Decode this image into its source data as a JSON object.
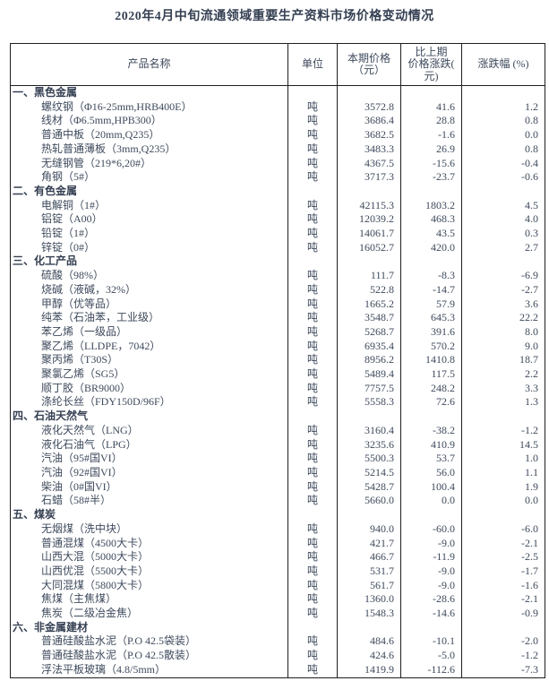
{
  "title": "2020年4月中旬流通领域重要生产资料市场价格变动情况",
  "colors": {
    "text": "#3e4a5c",
    "border": "#1f1f1f",
    "background": "#ffffff"
  },
  "table": {
    "headers": {
      "product": "产品名称",
      "unit": "单位",
      "price": "本期价格\n（元）",
      "change": "比上期\n价格涨跌(\n元)",
      "pct": "涨跌幅 (%)"
    },
    "sections": [
      {
        "title": "一、黑色金属",
        "rows": [
          {
            "name": "螺纹钢（Φ16-25mm,HRB400E）",
            "unit": "吨",
            "price": "3572.8",
            "change": "41.6",
            "pct": "1.2"
          },
          {
            "name": "线材（Φ6.5mm,HPB300）",
            "unit": "吨",
            "price": "3686.4",
            "change": "28.8",
            "pct": "0.8"
          },
          {
            "name": "普通中板（20mm,Q235）",
            "unit": "吨",
            "price": "3682.5",
            "change": "-1.6",
            "pct": "0.0"
          },
          {
            "name": "热轧普通薄板（3mm,Q235）",
            "unit": "吨",
            "price": "3483.3",
            "change": "26.9",
            "pct": "0.8"
          },
          {
            "name": "无缝钢管（219*6,20#）",
            "unit": "吨",
            "price": "4367.5",
            "change": "-15.6",
            "pct": "-0.4"
          },
          {
            "name": "角钢（5#）",
            "unit": "吨",
            "price": "3717.3",
            "change": "-23.7",
            "pct": "-0.6"
          }
        ]
      },
      {
        "title": "二、有色金属",
        "rows": [
          {
            "name": "电解铜（1#）",
            "unit": "吨",
            "price": "42115.3",
            "change": "1803.2",
            "pct": "4.5"
          },
          {
            "name": "铝锭（A00）",
            "unit": "吨",
            "price": "12039.2",
            "change": "468.3",
            "pct": "4.0"
          },
          {
            "name": "铅锭（1#）",
            "unit": "吨",
            "price": "14061.7",
            "change": "43.5",
            "pct": "0.3"
          },
          {
            "name": "锌锭（0#）",
            "unit": "吨",
            "price": "16052.7",
            "change": "420.0",
            "pct": "2.7"
          }
        ]
      },
      {
        "title": "三、化工产品",
        "rows": [
          {
            "name": "硫酸（98%）",
            "unit": "吨",
            "price": "111.7",
            "change": "-8.3",
            "pct": "-6.9"
          },
          {
            "name": "烧碱（液碱，32%）",
            "unit": "吨",
            "price": "522.8",
            "change": "-14.7",
            "pct": "-2.7"
          },
          {
            "name": "甲醇（优等品）",
            "unit": "吨",
            "price": "1665.2",
            "change": "57.9",
            "pct": "3.6"
          },
          {
            "name": "纯苯（石油苯，工业级）",
            "unit": "吨",
            "price": "3548.7",
            "change": "645.3",
            "pct": "22.2"
          },
          {
            "name": "苯乙烯（一级品）",
            "unit": "吨",
            "price": "5268.7",
            "change": "391.6",
            "pct": "8.0"
          },
          {
            "name": "聚乙烯（LLDPE，7042）",
            "unit": "吨",
            "price": "6935.4",
            "change": "570.2",
            "pct": "9.0"
          },
          {
            "name": "聚丙烯（T30S）",
            "unit": "吨",
            "price": "8956.2",
            "change": "1410.8",
            "pct": "18.7"
          },
          {
            "name": "聚氯乙烯（SG5）",
            "unit": "吨",
            "price": "5489.4",
            "change": "117.5",
            "pct": "2.2"
          },
          {
            "name": "顺丁胶（BR9000）",
            "unit": "吨",
            "price": "7757.5",
            "change": "248.2",
            "pct": "3.3"
          },
          {
            "name": "涤纶长丝（FDY150D/96F）",
            "unit": "吨",
            "price": "5558.3",
            "change": "72.6",
            "pct": "1.3"
          }
        ]
      },
      {
        "title": "四、石油天然气",
        "rows": [
          {
            "name": "液化天然气（LNG）",
            "unit": "吨",
            "price": "3160.4",
            "change": "-38.2",
            "pct": "-1.2"
          },
          {
            "name": "液化石油气（LPG）",
            "unit": "吨",
            "price": "3235.6",
            "change": "410.9",
            "pct": "14.5"
          },
          {
            "name": "汽油（95#国VI）",
            "unit": "吨",
            "price": "5500.3",
            "change": "53.7",
            "pct": "1.0"
          },
          {
            "name": "汽油（92#国VI）",
            "unit": "吨",
            "price": "5214.5",
            "change": "56.0",
            "pct": "1.1"
          },
          {
            "name": "柴油（0#国VI）",
            "unit": "吨",
            "price": "5428.7",
            "change": "100.4",
            "pct": "1.9"
          },
          {
            "name": "石蜡（58#半）",
            "unit": "吨",
            "price": "5660.0",
            "change": "0.0",
            "pct": "0.0"
          }
        ]
      },
      {
        "title": "五、煤炭",
        "rows": [
          {
            "name": "无烟煤（洗中块）",
            "unit": "吨",
            "price": "940.0",
            "change": "-60.0",
            "pct": "-6.0"
          },
          {
            "name": "普通混煤（4500大卡）",
            "unit": "吨",
            "price": "421.7",
            "change": "-9.0",
            "pct": "-2.1"
          },
          {
            "name": "山西大混（5000大卡）",
            "unit": "吨",
            "price": "466.7",
            "change": "-11.9",
            "pct": "-2.5"
          },
          {
            "name": "山西优混（5500大卡）",
            "unit": "吨",
            "price": "531.7",
            "change": "-9.0",
            "pct": "-1.7"
          },
          {
            "name": "大同混煤（5800大卡）",
            "unit": "吨",
            "price": "561.7",
            "change": "-9.0",
            "pct": "-1.6"
          },
          {
            "name": "焦煤（主焦煤）",
            "unit": "吨",
            "price": "1360.0",
            "change": "-28.6",
            "pct": "-2.1"
          },
          {
            "name": "焦炭（二级冶金焦）",
            "unit": "吨",
            "price": "1548.3",
            "change": "-14.6",
            "pct": "-0.9"
          }
        ]
      },
      {
        "title": "六、非金属建材",
        "rows": [
          {
            "name": "普通硅酸盐水泥（P.O 42.5袋装）",
            "unit": "吨",
            "price": "484.6",
            "change": "-10.1",
            "pct": "-2.0"
          },
          {
            "name": "普通硅酸盐水泥（P.O 42.5散装）",
            "unit": "吨",
            "price": "424.6",
            "change": "-5.0",
            "pct": "-1.2"
          },
          {
            "name": "浮法平板玻璃（4.8/5mm）",
            "unit": "吨",
            "price": "1419.9",
            "change": "-112.6",
            "pct": "-7.3"
          }
        ]
      }
    ]
  }
}
